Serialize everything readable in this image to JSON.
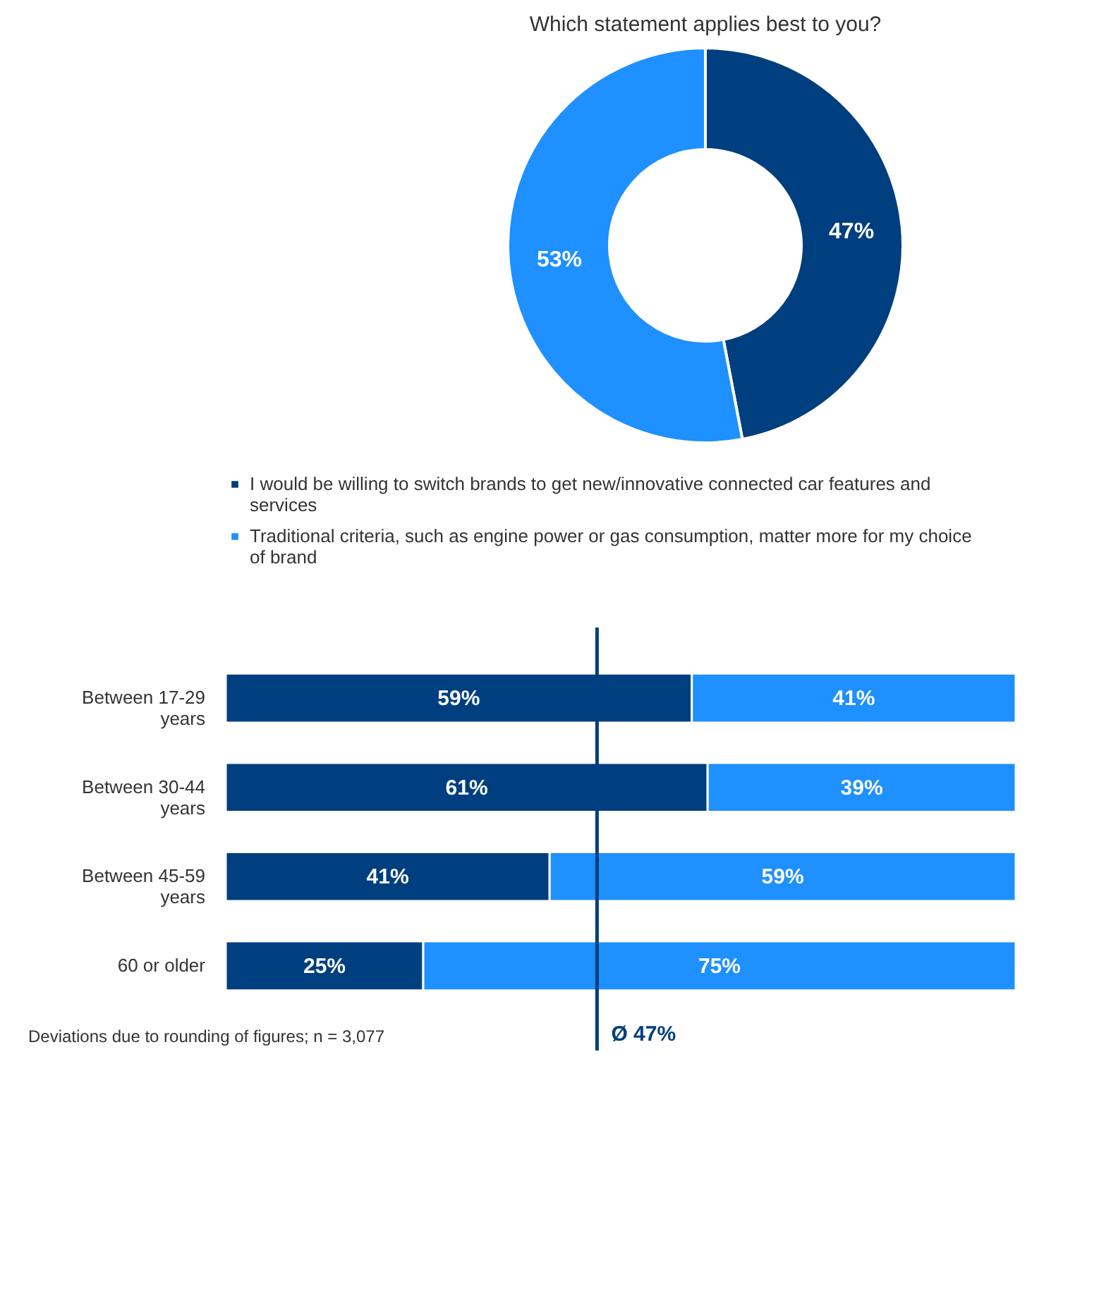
{
  "chart_data": [
    {
      "type": "donut",
      "title": "Which statement applies best to you?",
      "categories": [
        "I would be willing to switch brands to get new/innovative connected car features and services",
        "Traditional criteria, such as engine power or gas consumption, matter more for my choice of brand"
      ],
      "values": [
        47,
        53
      ],
      "value_labels": [
        "47%",
        "53%"
      ],
      "colors": [
        "#003f7f",
        "#1e90ff"
      ],
      "legend": "bottom"
    },
    {
      "type": "bar",
      "orientation": "horizontal",
      "stacked": true,
      "categories": [
        "Between 17-29 years",
        "Between 30-44 years",
        "Between 45-59 years",
        "60 or older"
      ],
      "xlim": [
        0,
        100
      ],
      "tick_labels": "y",
      "series": [
        {
          "color": "#003f7f",
          "values": [
            59,
            61,
            41,
            25
          ],
          "value_labels": [
            "59%",
            "61%",
            "41%",
            "25%"
          ]
        },
        {
          "color": "#1e90ff",
          "values": [
            41,
            39,
            59,
            75
          ],
          "value_labels": [
            "41%",
            "39%",
            "59%",
            "75%"
          ]
        }
      ],
      "ref_lines": [
        {
          "axis": "x",
          "value": 47,
          "label": "Ø 47%",
          "color": "#003f7f"
        }
      ],
      "annotations": [
        "Deviations due to rounding of figures; n = 3,077"
      ]
    }
  ]
}
